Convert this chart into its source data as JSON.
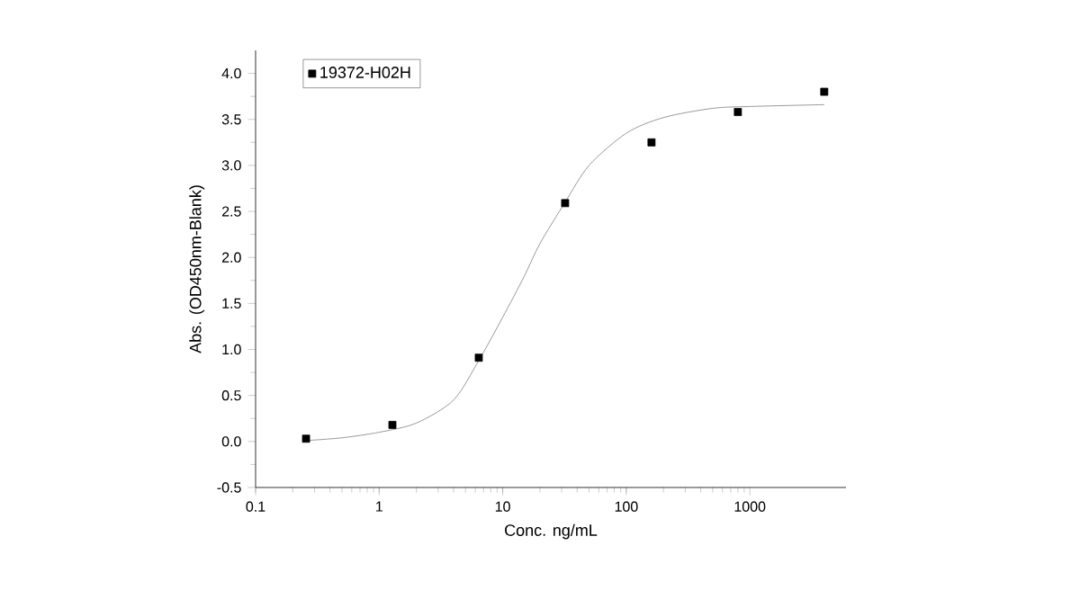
{
  "chart_data": {
    "type": "scatter",
    "xlabel": "Conc. ng/mL",
    "ylabel": "Abs. (OD450nm-Blank)",
    "log": "x",
    "legend": "top left",
    "grid": false,
    "marker": "square",
    "xlim": [
      0.1,
      6000
    ],
    "ylim": [
      -0.5,
      4.25
    ],
    "xticks": [
      0.1,
      1,
      10,
      100,
      1000
    ],
    "yticks": [
      {
        "value": -0.5,
        "label": "-0.5"
      },
      {
        "value": 0,
        "label": "0.0"
      },
      {
        "value": 0.5,
        "label": "0.5"
      },
      {
        "value": 1,
        "label": "1.0"
      },
      {
        "value": 1.5,
        "label": "1.5"
      },
      {
        "value": 2,
        "label": "2.0"
      },
      {
        "value": 2.5,
        "label": "2.5"
      },
      {
        "value": 3,
        "label": "3.0"
      },
      {
        "value": 3.5,
        "label": "3.5"
      },
      {
        "value": 4,
        "label": "4.0"
      }
    ],
    "series": [
      {
        "name": "19372-H02H",
        "color": "#000000",
        "x": [
          0.256,
          1.28,
          6.4,
          32,
          160,
          800,
          4000
        ],
        "values": [
          0.03,
          0.18,
          0.91,
          2.59,
          3.25,
          3.58,
          3.8
        ]
      },
      {
        "type": "line",
        "color": "#808080",
        "marker": "none",
        "x": [
          0.256,
          0.5,
          1,
          2,
          4,
          6.4,
          10,
          15,
          20,
          32,
          50,
          100,
          200,
          500,
          1000,
          4000
        ],
        "values": [
          0.01,
          0.04,
          0.1,
          0.2,
          0.45,
          0.88,
          1.35,
          1.8,
          2.15,
          2.6,
          3.0,
          3.35,
          3.52,
          3.62,
          3.64,
          3.66
        ]
      }
    ]
  }
}
